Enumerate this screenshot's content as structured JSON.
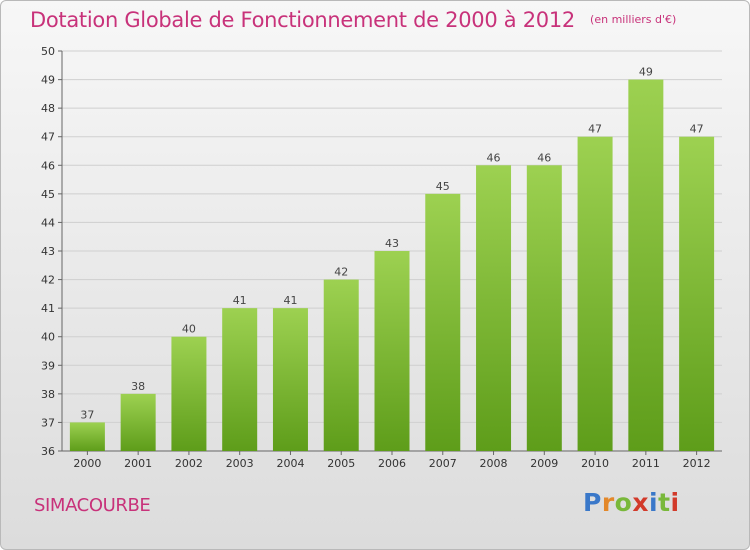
{
  "header": {
    "title": "Dotation Globale de Fonctionnement de 2000 à 2012",
    "subtitle": "(en milliers d'€)"
  },
  "footer": {
    "commune": "SIMACOURBE",
    "logo_text": "Proxiti"
  },
  "colors": {
    "title": "#c8327a",
    "bar_top": "#9dd151",
    "bar_bottom": "#5e9d1a",
    "logo_letters": [
      "#3a78c9",
      "#e3882a",
      "#79b83a",
      "#d23a2a",
      "#3a78c9",
      "#79b83a",
      "#d23a2a"
    ]
  },
  "chart_data": {
    "type": "bar",
    "categories": [
      "2000",
      "2001",
      "2002",
      "2003",
      "2004",
      "2005",
      "2006",
      "2007",
      "2008",
      "2009",
      "2010",
      "2011",
      "2012"
    ],
    "values": [
      37,
      38,
      40,
      41,
      41,
      42,
      43,
      45,
      46,
      46,
      47,
      49,
      47
    ],
    "title": "Dotation Globale de Fonctionnement de 2000 à 2012",
    "subtitle": "(en milliers d'€)",
    "ylim": [
      36,
      50
    ],
    "yticks": [
      36,
      37,
      38,
      39,
      40,
      41,
      42,
      43,
      44,
      45,
      46,
      47,
      48,
      49,
      50
    ],
    "grid": true,
    "data_labels": true
  }
}
